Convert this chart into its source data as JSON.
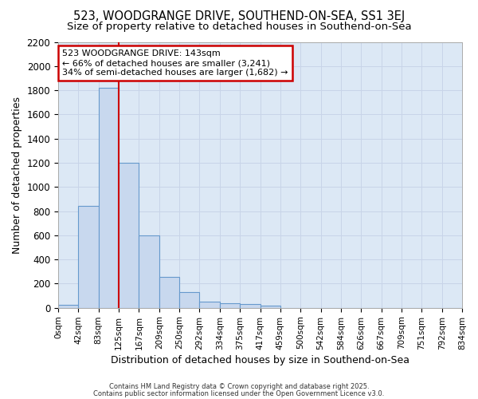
{
  "title": "523, WOODGRANGE DRIVE, SOUTHEND-ON-SEA, SS1 3EJ",
  "subtitle": "Size of property relative to detached houses in Southend-on-Sea",
  "xlabel": "Distribution of detached houses by size in Southend-on-Sea",
  "ylabel": "Number of detached properties",
  "bar_values": [
    25,
    840,
    1820,
    1200,
    600,
    255,
    130,
    50,
    40,
    30,
    20,
    0,
    0,
    0,
    0,
    0,
    0,
    0,
    0,
    0
  ],
  "bin_labels": [
    "0sqm",
    "42sqm",
    "83sqm",
    "125sqm",
    "167sqm",
    "209sqm",
    "250sqm",
    "292sqm",
    "334sqm",
    "375sqm",
    "417sqm",
    "459sqm",
    "500sqm",
    "542sqm",
    "584sqm",
    "626sqm",
    "667sqm",
    "709sqm",
    "751sqm",
    "792sqm",
    "834sqm"
  ],
  "bar_color": "#c8d8ee",
  "bar_edge_color": "#6699cc",
  "property_line_x": 3.0,
  "annotation_text": "523 WOODGRANGE DRIVE: 143sqm\n← 66% of detached houses are smaller (3,241)\n34% of semi-detached houses are larger (1,682) →",
  "annotation_box_color": "#ffffff",
  "annotation_box_edge_color": "#cc0000",
  "vline_color": "#cc0000",
  "ylim": [
    0,
    2200
  ],
  "yticks": [
    0,
    200,
    400,
    600,
    800,
    1000,
    1200,
    1400,
    1600,
    1800,
    2000,
    2200
  ],
  "grid_color": "#c8d4e8",
  "bg_color": "#dce8f5",
  "fig_bg_color": "#ffffff",
  "footer_line1": "Contains HM Land Registry data © Crown copyright and database right 2025.",
  "footer_line2": "Contains public sector information licensed under the Open Government Licence v3.0.",
  "title_fontsize": 10.5,
  "subtitle_fontsize": 9.5
}
